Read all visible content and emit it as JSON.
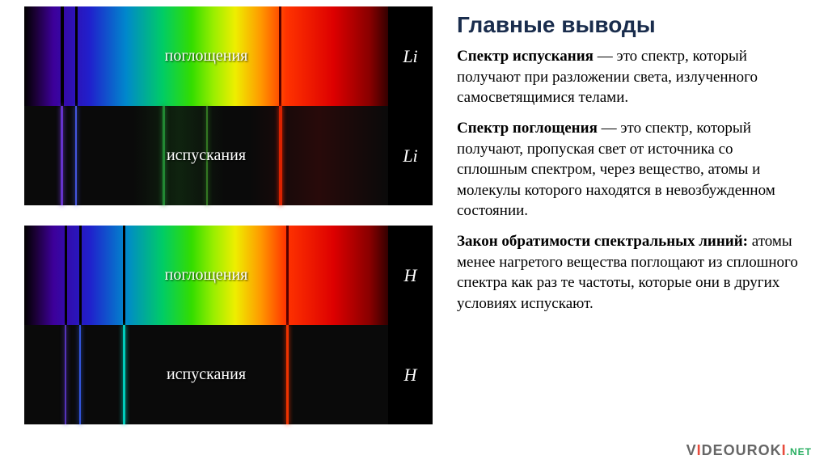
{
  "title": "Главные выводы",
  "title_color": "#1a2d4d",
  "paragraphs": [
    {
      "term": "Спектр испускания",
      "text": " — это спектр, который получают при разложении света, излученного самосветящимися телами."
    },
    {
      "term": "Спектр поглощения",
      "text": " — это спектр, который получают, пропуская свет от источника со сплошным спектром, через вещество, атомы и молекулы которого находятся в невозбужденном состоянии."
    },
    {
      "term": "Закон обратимости спектральных линий:",
      "text": " атомы менее нагретого вещества поглощают из сплошного спектра как раз те частоты, которые они в других условиях испускают."
    }
  ],
  "spectra": [
    {
      "element": "Li",
      "absorption": {
        "label": "поглощения",
        "dark_lines": [
          {
            "pos": 10,
            "color": "#000000",
            "w": 4
          },
          {
            "pos": 14,
            "color": "#000000",
            "w": 3
          },
          {
            "pos": 70,
            "color": "#550000",
            "w": 3
          }
        ]
      },
      "emission": {
        "label": "испускания",
        "bright_lines": [
          {
            "pos": 10,
            "color": "#6633cc",
            "w": 3
          },
          {
            "pos": 14,
            "color": "#4455dd",
            "w": 2
          },
          {
            "pos": 38,
            "color": "#228833",
            "w": 3
          },
          {
            "pos": 50,
            "color": "#337722",
            "w": 2
          },
          {
            "pos": 70,
            "color": "#dd2200",
            "w": 4
          }
        ],
        "bg_tint": [
          {
            "from": 30,
            "to": 55,
            "color": "rgba(20,60,20,0.5)"
          },
          {
            "from": 62,
            "to": 100,
            "color": "rgba(60,10,10,0.6)"
          }
        ]
      }
    },
    {
      "element": "H",
      "absorption": {
        "label": "поглощения",
        "dark_lines": [
          {
            "pos": 11,
            "color": "#000000",
            "w": 3
          },
          {
            "pos": 15,
            "color": "#000000",
            "w": 3
          },
          {
            "pos": 27,
            "color": "#000000",
            "w": 3
          },
          {
            "pos": 72,
            "color": "#550000",
            "w": 3
          }
        ]
      },
      "emission": {
        "label": "испускания",
        "bright_lines": [
          {
            "pos": 11,
            "color": "#5533bb",
            "w": 2
          },
          {
            "pos": 15,
            "color": "#3355dd",
            "w": 2
          },
          {
            "pos": 27,
            "color": "#00ccbb",
            "w": 3
          },
          {
            "pos": 72,
            "color": "#ee3300",
            "w": 3
          }
        ],
        "bg_tint": []
      }
    }
  ],
  "watermark": {
    "v": "V",
    "i": "I",
    "rest": "DEOUROK",
    "i2": "I",
    "net": ".NET"
  }
}
